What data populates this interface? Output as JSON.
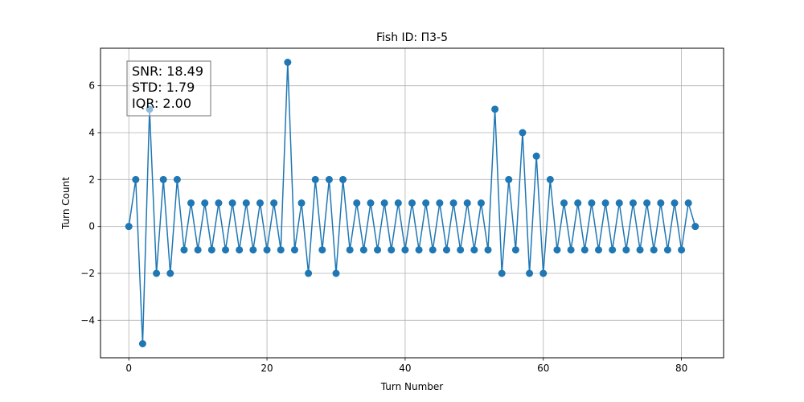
{
  "chart_data": {
    "type": "line",
    "title": "Fish ID: П3-5",
    "xlabel": "Turn Number",
    "ylabel": "Turn Count",
    "xlim": [
      -4.1,
      86.1
    ],
    "ylim": [
      -5.6,
      7.6
    ],
    "xticks": [
      0,
      20,
      40,
      60,
      80
    ],
    "yticks": [
      -4,
      -2,
      0,
      2,
      4,
      6
    ],
    "grid": true,
    "color": "#1f77b4",
    "marker": "circle",
    "x": [
      0,
      1,
      2,
      3,
      4,
      5,
      6,
      7,
      8,
      9,
      10,
      11,
      12,
      13,
      14,
      15,
      16,
      17,
      18,
      19,
      20,
      21,
      22,
      23,
      24,
      25,
      26,
      27,
      28,
      29,
      30,
      31,
      32,
      33,
      34,
      35,
      36,
      37,
      38,
      39,
      40,
      41,
      42,
      43,
      44,
      45,
      46,
      47,
      48,
      49,
      50,
      51,
      52,
      53,
      54,
      55,
      56,
      57,
      58,
      59,
      60,
      61,
      62,
      63,
      64,
      65,
      66,
      67,
      68,
      69,
      70,
      71,
      72,
      73,
      74,
      75,
      76,
      77,
      78,
      79,
      80,
      81,
      82
    ],
    "y": [
      0,
      2,
      -5,
      5,
      -2,
      2,
      -2,
      2,
      -1,
      1,
      -1,
      1,
      -1,
      1,
      -1,
      1,
      -1,
      1,
      -1,
      1,
      -1,
      1,
      -1,
      7,
      -1,
      1,
      -2,
      2,
      -1,
      2,
      -2,
      2,
      -1,
      1,
      -1,
      1,
      -1,
      1,
      -1,
      1,
      -1,
      1,
      -1,
      1,
      -1,
      1,
      -1,
      1,
      -1,
      1,
      -1,
      1,
      -1,
      5,
      -2,
      2,
      -1,
      4,
      -2,
      3,
      -2,
      2,
      -1,
      1,
      -1,
      1,
      -1,
      1,
      -1,
      1,
      -1,
      1,
      -1,
      1,
      -1,
      1,
      -1,
      1,
      -1,
      1,
      -1,
      1,
      0
    ],
    "stats_box": {
      "position": "top-left",
      "lines": [
        "SNR: 18.49",
        "STD: 1.79",
        "IQR: 2.00"
      ]
    }
  }
}
